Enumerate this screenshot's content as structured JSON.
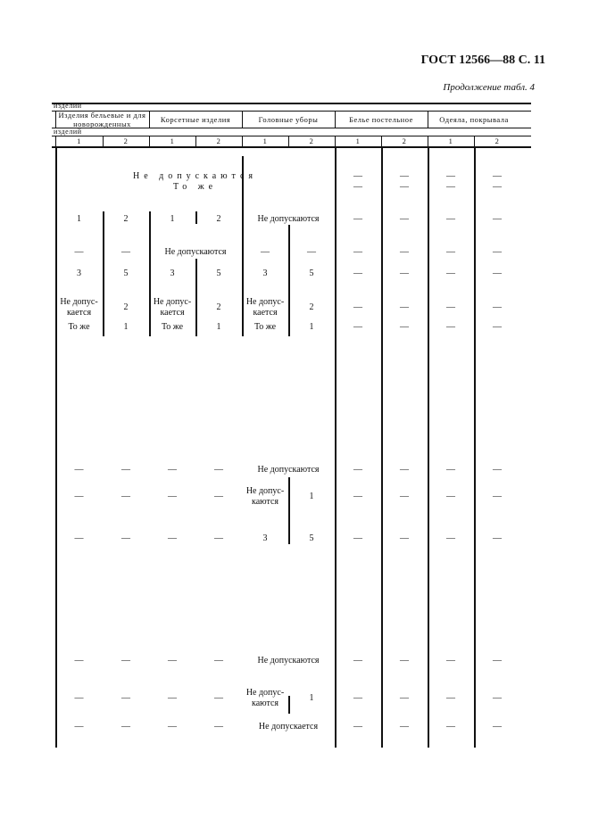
{
  "header": {
    "title": "ГОСТ 12566—88 С. 11",
    "continuation": "Продолжение табл. 4"
  },
  "table": {
    "top_label": "изделий",
    "mid_label": "изделий",
    "groups": [
      "Изделия бельевые и для новорожденных",
      "Корсетные изделия",
      "Головные уборы",
      "Белье постельное",
      "Одеяла, покрывала"
    ],
    "subcols": [
      "1",
      "2",
      "1",
      "2",
      "1",
      "2",
      "1",
      "2",
      "1",
      "2"
    ],
    "rows": [
      [
        {
          "c": [
            0,
            5
          ],
          "t": "Не допускаются",
          "spaced": true
        },
        {
          "c": [
            6,
            6
          ],
          "t": "—"
        },
        {
          "c": [
            7,
            7
          ],
          "t": "—"
        },
        {
          "c": [
            8,
            8
          ],
          "t": "—"
        },
        {
          "c": [
            9,
            9
          ],
          "t": "—"
        }
      ],
      [
        {
          "c": [
            0,
            5
          ],
          "t": "То же",
          "spaced": true
        },
        {
          "c": [
            6,
            6
          ],
          "t": "—"
        },
        {
          "c": [
            7,
            7
          ],
          "t": "—"
        },
        {
          "c": [
            8,
            8
          ],
          "t": "—"
        },
        {
          "c": [
            9,
            9
          ],
          "t": "—"
        }
      ],
      [
        {
          "c": [
            0,
            0
          ],
          "t": "1"
        },
        {
          "c": [
            1,
            1
          ],
          "t": "2"
        },
        {
          "c": [
            2,
            2
          ],
          "t": "1"
        },
        {
          "c": [
            3,
            3
          ],
          "t": "2"
        },
        {
          "c": [
            4,
            5
          ],
          "t": "Не допускаются"
        },
        {
          "c": [
            6,
            6
          ],
          "t": "—"
        },
        {
          "c": [
            7,
            7
          ],
          "t": "—"
        },
        {
          "c": [
            8,
            8
          ],
          "t": "—"
        },
        {
          "c": [
            9,
            9
          ],
          "t": "—"
        }
      ],
      [
        {
          "c": [
            0,
            0
          ],
          "t": "—"
        },
        {
          "c": [
            1,
            1
          ],
          "t": "—"
        },
        {
          "c": [
            2,
            3
          ],
          "t": "Не допускаются"
        },
        {
          "c": [
            4,
            4
          ],
          "t": "—"
        },
        {
          "c": [
            5,
            5
          ],
          "t": "—"
        },
        {
          "c": [
            6,
            6
          ],
          "t": "—"
        },
        {
          "c": [
            7,
            7
          ],
          "t": "—"
        },
        {
          "c": [
            8,
            8
          ],
          "t": "—"
        },
        {
          "c": [
            9,
            9
          ],
          "t": "—"
        }
      ],
      [
        {
          "c": [
            0,
            0
          ],
          "t": "3"
        },
        {
          "c": [
            1,
            1
          ],
          "t": "5"
        },
        {
          "c": [
            2,
            2
          ],
          "t": "3"
        },
        {
          "c": [
            3,
            3
          ],
          "t": "5"
        },
        {
          "c": [
            4,
            4
          ],
          "t": "3"
        },
        {
          "c": [
            5,
            5
          ],
          "t": "5"
        },
        {
          "c": [
            6,
            6
          ],
          "t": "—"
        },
        {
          "c": [
            7,
            7
          ],
          "t": "—"
        },
        {
          "c": [
            8,
            8
          ],
          "t": "—"
        },
        {
          "c": [
            9,
            9
          ],
          "t": "—"
        }
      ],
      [
        {
          "c": [
            0,
            0
          ],
          "t": "Не допус-кается"
        },
        {
          "c": [
            1,
            1
          ],
          "t": "2"
        },
        {
          "c": [
            2,
            2
          ],
          "t": "Не допус-кается"
        },
        {
          "c": [
            3,
            3
          ],
          "t": "2"
        },
        {
          "c": [
            4,
            4
          ],
          "t": "Не допус-кается"
        },
        {
          "c": [
            5,
            5
          ],
          "t": "2"
        },
        {
          "c": [
            6,
            6
          ],
          "t": "—"
        },
        {
          "c": [
            7,
            7
          ],
          "t": "—"
        },
        {
          "c": [
            8,
            8
          ],
          "t": "—"
        },
        {
          "c": [
            9,
            9
          ],
          "t": "—"
        }
      ],
      [
        {
          "c": [
            0,
            0
          ],
          "t": "То же"
        },
        {
          "c": [
            1,
            1
          ],
          "t": "1"
        },
        {
          "c": [
            2,
            2
          ],
          "t": "То же"
        },
        {
          "c": [
            3,
            3
          ],
          "t": "1"
        },
        {
          "c": [
            4,
            4
          ],
          "t": "То же"
        },
        {
          "c": [
            5,
            5
          ],
          "t": "1"
        },
        {
          "c": [
            6,
            6
          ],
          "t": "—"
        },
        {
          "c": [
            7,
            7
          ],
          "t": "—"
        },
        {
          "c": [
            8,
            8
          ],
          "t": "—"
        },
        {
          "c": [
            9,
            9
          ],
          "t": "—"
        }
      ],
      [
        {
          "c": [
            0,
            0
          ],
          "t": "—"
        },
        {
          "c": [
            1,
            1
          ],
          "t": "—"
        },
        {
          "c": [
            2,
            2
          ],
          "t": "—"
        },
        {
          "c": [
            3,
            3
          ],
          "t": "—"
        },
        {
          "c": [
            4,
            5
          ],
          "t": "Не допускаются"
        },
        {
          "c": [
            6,
            6
          ],
          "t": "—"
        },
        {
          "c": [
            7,
            7
          ],
          "t": "—"
        },
        {
          "c": [
            8,
            8
          ],
          "t": "—"
        },
        {
          "c": [
            9,
            9
          ],
          "t": "—"
        }
      ],
      [
        {
          "c": [
            0,
            0
          ],
          "t": "—"
        },
        {
          "c": [
            1,
            1
          ],
          "t": "—"
        },
        {
          "c": [
            2,
            2
          ],
          "t": "—"
        },
        {
          "c": [
            3,
            3
          ],
          "t": "—"
        },
        {
          "c": [
            4,
            4
          ],
          "t": "Не допус-каются"
        },
        {
          "c": [
            5,
            5
          ],
          "t": "1"
        },
        {
          "c": [
            6,
            6
          ],
          "t": "—"
        },
        {
          "c": [
            7,
            7
          ],
          "t": "—"
        },
        {
          "c": [
            8,
            8
          ],
          "t": "—"
        },
        {
          "c": [
            9,
            9
          ],
          "t": "—"
        }
      ],
      [
        {
          "c": [
            0,
            0
          ],
          "t": "—"
        },
        {
          "c": [
            1,
            1
          ],
          "t": "—"
        },
        {
          "c": [
            2,
            2
          ],
          "t": "—"
        },
        {
          "c": [
            3,
            3
          ],
          "t": "—"
        },
        {
          "c": [
            4,
            4
          ],
          "t": "3"
        },
        {
          "c": [
            5,
            5
          ],
          "t": "5"
        },
        {
          "c": [
            6,
            6
          ],
          "t": "—"
        },
        {
          "c": [
            7,
            7
          ],
          "t": "—"
        },
        {
          "c": [
            8,
            8
          ],
          "t": "—"
        },
        {
          "c": [
            9,
            9
          ],
          "t": "—"
        }
      ],
      [
        {
          "c": [
            0,
            0
          ],
          "t": "—"
        },
        {
          "c": [
            1,
            1
          ],
          "t": "—"
        },
        {
          "c": [
            2,
            2
          ],
          "t": "—"
        },
        {
          "c": [
            3,
            3
          ],
          "t": "—"
        },
        {
          "c": [
            4,
            5
          ],
          "t": "Не допускаются"
        },
        {
          "c": [
            6,
            6
          ],
          "t": "—"
        },
        {
          "c": [
            7,
            7
          ],
          "t": "—"
        },
        {
          "c": [
            8,
            8
          ],
          "t": "—"
        },
        {
          "c": [
            9,
            9
          ],
          "t": "—"
        }
      ],
      [
        {
          "c": [
            0,
            0
          ],
          "t": "—"
        },
        {
          "c": [
            1,
            1
          ],
          "t": "—"
        },
        {
          "c": [
            2,
            2
          ],
          "t": "—"
        },
        {
          "c": [
            3,
            3
          ],
          "t": "—"
        },
        {
          "c": [
            4,
            4
          ],
          "t": "Не допус-каются"
        },
        {
          "c": [
            5,
            5
          ],
          "t": "1"
        },
        {
          "c": [
            6,
            6
          ],
          "t": "—"
        },
        {
          "c": [
            7,
            7
          ],
          "t": "—"
        },
        {
          "c": [
            8,
            8
          ],
          "t": "—"
        },
        {
          "c": [
            9,
            9
          ],
          "t": "—"
        }
      ],
      [
        {
          "c": [
            0,
            0
          ],
          "t": "—"
        },
        {
          "c": [
            1,
            1
          ],
          "t": "—"
        },
        {
          "c": [
            2,
            2
          ],
          "t": "—"
        },
        {
          "c": [
            3,
            3
          ],
          "t": "—"
        },
        {
          "c": [
            4,
            5
          ],
          "t": "Не допускается"
        },
        {
          "c": [
            6,
            6
          ],
          "t": "—"
        },
        {
          "c": [
            7,
            7
          ],
          "t": "—"
        },
        {
          "c": [
            8,
            8
          ],
          "t": "—"
        },
        {
          "c": [
            9,
            9
          ],
          "t": "—"
        }
      ]
    ]
  }
}
